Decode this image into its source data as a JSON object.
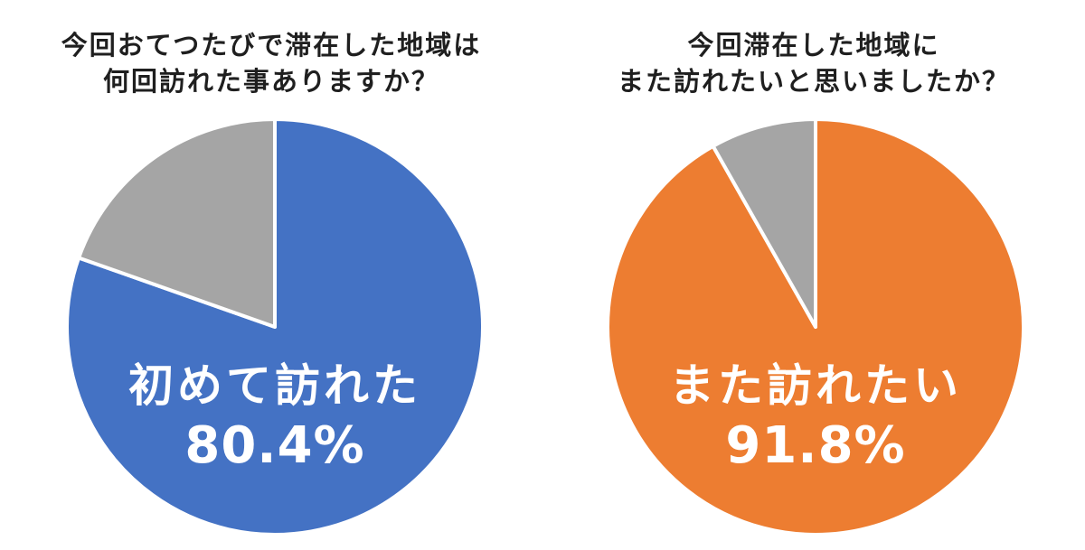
{
  "chart_data": [
    {
      "type": "pie",
      "title_lines": [
        "今回おてつたびで滞在した地域は",
        "何回訪れた事ありますか？"
      ],
      "slices": [
        {
          "label": "初めて訪れた",
          "value": 80.4,
          "display": "80.4%",
          "color": "#4472C4",
          "labeled": true
        },
        {
          "label": "",
          "value": 19.6,
          "display": "",
          "color": "#A5A5A5",
          "labeled": false
        }
      ]
    },
    {
      "type": "pie",
      "title_lines": [
        "今回滞在した地域に",
        "また訪れたいと思いましたか？"
      ],
      "slices": [
        {
          "label": "また訪れたい",
          "value": 91.8,
          "display": "91.8%",
          "color": "#ED7D31",
          "labeled": true
        },
        {
          "label": "",
          "value": 8.2,
          "display": "",
          "color": "#A5A5A5",
          "labeled": false
        }
      ]
    }
  ]
}
